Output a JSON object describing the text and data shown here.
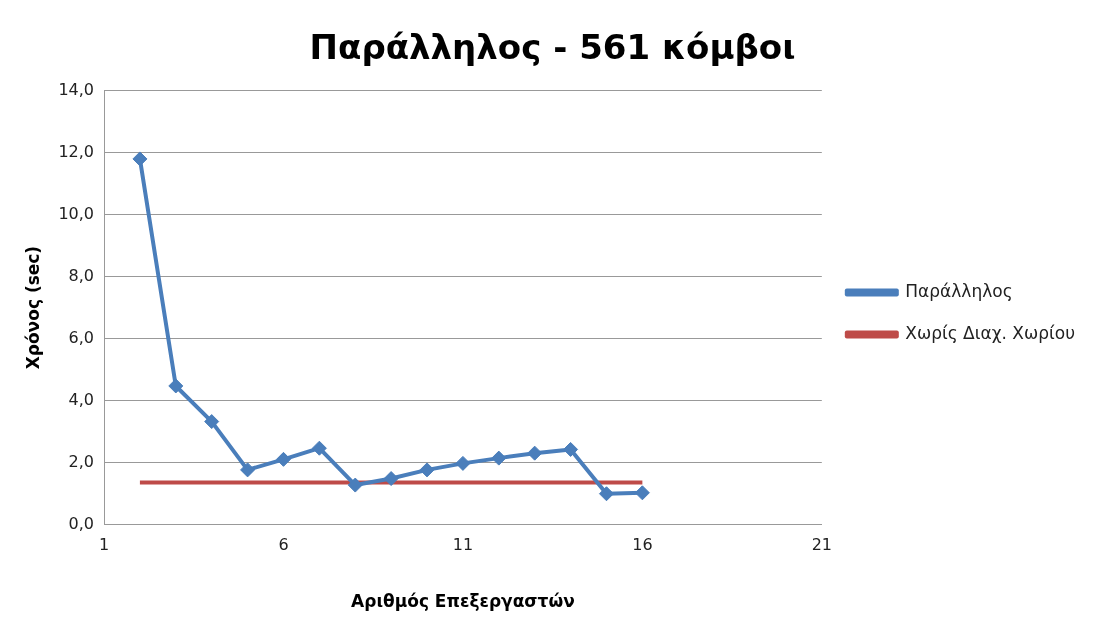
{
  "chart_data": {
    "type": "line",
    "title": "Παράλληλος - 561 κόμβοι",
    "xlabel": "Αριθμός Επεξεργαστών",
    "ylabel": "Χρόνος (sec)",
    "xlim": [
      1,
      21
    ],
    "xticks": [
      1,
      6,
      11,
      16,
      21
    ],
    "ylim": [
      0,
      14
    ],
    "yticks": [
      {
        "value": 0,
        "label": "0,0"
      },
      {
        "value": 2,
        "label": "2,0"
      },
      {
        "value": 4,
        "label": "4,0"
      },
      {
        "value": 6,
        "label": "6,0"
      },
      {
        "value": 8,
        "label": "8,0"
      },
      {
        "value": 10,
        "label": "10,0"
      },
      {
        "value": 12,
        "label": "12,0"
      },
      {
        "value": 14,
        "label": "14,0"
      }
    ],
    "grid": "y",
    "legend": "right",
    "marker": "diamond",
    "series": [
      {
        "name": "Παράλληλος",
        "color": "#4a7ebb",
        "x": [
          2,
          3,
          4,
          5,
          6,
          7,
          8,
          9,
          10,
          11,
          12,
          13,
          14,
          15,
          16
        ],
        "values": [
          11.8,
          4.47,
          3.32,
          1.76,
          2.1,
          2.46,
          1.27,
          1.48,
          1.76,
          1.97,
          2.14,
          2.3,
          2.42,
          0.99,
          1.02
        ]
      },
      {
        "name": "Χωρίς Διαχ. Χωρίου",
        "color": "#be4b48",
        "marker": "none",
        "x": [
          2,
          16
        ],
        "values": [
          1.35,
          1.35
        ]
      }
    ]
  }
}
